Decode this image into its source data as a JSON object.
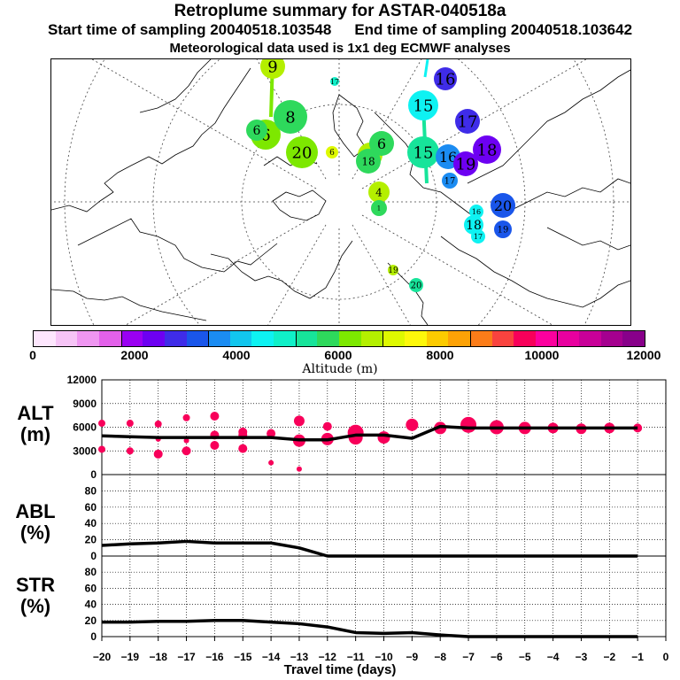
{
  "header": {
    "title": "Retroplume summary for ASTAR-040518a",
    "start": "Start time of sampling 20040518.103548",
    "end": "End time of sampling 20040518.103642",
    "met": "Meteorological data used is 1x1 deg ECMWF analyses"
  },
  "colorbar": {
    "title": "Altitude (m)",
    "ticks": [
      "0",
      "2000",
      "4000",
      "6000",
      "8000",
      "10000",
      "12000"
    ],
    "colors": [
      "#fde6fd",
      "#f6c4f6",
      "#ef96f1",
      "#e361ea",
      "#9a00f2",
      "#6d00f2",
      "#3f2ce8",
      "#1a56ea",
      "#1b8cf2",
      "#12c6ee",
      "#0ef2f2",
      "#10f0c8",
      "#17e49a",
      "#2ed95c",
      "#7de800",
      "#b4ef00",
      "#def900",
      "#fdf80a",
      "#fccb00",
      "#fda206",
      "#fb7c19",
      "#f9433f",
      "#f8005a",
      "#fc009e",
      "#e8009f",
      "#c80098",
      "#a5008f",
      "#88008a"
    ]
  },
  "map": {
    "plumes": [
      {
        "label": "9",
        "color": "#b4ef00"
      },
      {
        "label": "17",
        "color": "#10f0c8"
      },
      {
        "label": "6",
        "color": "#7de800"
      },
      {
        "label": "8",
        "color": "#2ed95c"
      },
      {
        "label": "6",
        "color": "#2ed95c"
      },
      {
        "label": "20",
        "color": "#7de800"
      },
      {
        "label": "6",
        "color": "#def900"
      },
      {
        "label": "4",
        "color": "#b4ef00"
      },
      {
        "label": "18",
        "color": "#2ed95c"
      },
      {
        "label": "6",
        "color": "#2ed95c"
      },
      {
        "label": "4",
        "color": "#b4ef00"
      },
      {
        "label": "1",
        "color": "#2ed95c"
      },
      {
        "label": "16",
        "color": "#3f2ce8"
      },
      {
        "label": "15",
        "color": "#0ef2f2"
      },
      {
        "label": "17",
        "color": "#3f2ce8"
      },
      {
        "label": "18",
        "color": "#6d00f2"
      },
      {
        "label": "15",
        "color": "#17e49a"
      },
      {
        "label": "16",
        "color": "#1b8cf2"
      },
      {
        "label": "19",
        "color": "#6d00f2"
      },
      {
        "label": "17",
        "color": "#1b8cf2"
      },
      {
        "label": "20",
        "color": "#1a56ea"
      },
      {
        "label": "16",
        "color": "#0ef2f2"
      },
      {
        "label": "18",
        "color": "#0ef2f2"
      },
      {
        "label": "19",
        "color": "#1a56ea"
      },
      {
        "label": "17",
        "color": "#0ef2f2"
      },
      {
        "label": "19",
        "color": "#b4ef00"
      },
      {
        "label": "20",
        "color": "#17e49a"
      }
    ]
  },
  "panels": {
    "alt": {
      "name": "ALT",
      "unit": "(m)"
    },
    "abl": {
      "name": "ABL",
      "unit": "(%)"
    },
    "str": {
      "name": "STR",
      "unit": "(%)"
    }
  },
  "xaxis": {
    "title": "Travel time (days)"
  },
  "chart_data": [
    {
      "type": "line",
      "title": "ALT",
      "ylabel": "ALT (m)",
      "xlabel": "Travel time (days)",
      "ylim": [
        0,
        12000
      ],
      "yticks": [
        "0",
        "3000",
        "6000",
        "9000",
        "12000"
      ],
      "x": [
        -20,
        -19,
        -18,
        -17,
        -16,
        -15,
        -14,
        -13,
        -12,
        -11,
        -10,
        -9,
        -8,
        -7,
        -6,
        -5,
        -4,
        -3,
        -2,
        -1
      ],
      "series": [
        {
          "name": "mean altitude",
          "values": [
            4900,
            4800,
            4700,
            4700,
            4700,
            4700,
            4700,
            4400,
            4400,
            5000,
            5000,
            4600,
            6100,
            5900,
            5900,
            5900,
            5900,
            5900,
            5900,
            5900
          ]
        }
      ],
      "clusters": {
        "x": [
          -20,
          -20,
          -19,
          -19,
          -18,
          -18,
          -18,
          -17,
          -17,
          -17,
          -16,
          -16,
          -16,
          -15,
          -15,
          -15,
          -14,
          -14,
          -13,
          -13,
          -13,
          -12,
          -12,
          -11,
          -11,
          -10,
          -10,
          -9,
          -8,
          -7,
          -6,
          -5,
          -4,
          -3,
          -2,
          -1
        ],
        "y": [
          6500,
          3200,
          6500,
          3000,
          6400,
          2600,
          4500,
          7200,
          3000,
          4300,
          7400,
          3700,
          5000,
          5400,
          3300,
          5000,
          5200,
          1500,
          6800,
          700,
          4300,
          6100,
          4500,
          5300,
          4700,
          4700,
          4500,
          6300,
          5900,
          6300,
          6000,
          5900,
          5900,
          5800,
          5900,
          5900
        ],
        "size": [
          4,
          4,
          4,
          4,
          4,
          5,
          3,
          4,
          5,
          3,
          5,
          5,
          5,
          5,
          5,
          5,
          5,
          3,
          6,
          3,
          7,
          5,
          7,
          9,
          8,
          7,
          3,
          7,
          7,
          9,
          8,
          7,
          6,
          6,
          6,
          5
        ]
      }
    },
    {
      "type": "area",
      "title": "ABL",
      "ylabel": "ABL (%)",
      "ylim": [
        0,
        100
      ],
      "yticks": [
        "0",
        "20",
        "40",
        "60",
        "80"
      ],
      "x": [
        -20,
        -19,
        -18,
        -17,
        -16,
        -15,
        -14,
        -13,
        -12,
        -11,
        -10,
        -9,
        -8,
        -7,
        -6,
        -5,
        -4,
        -3,
        -2,
        -1
      ],
      "values": [
        13,
        15,
        16,
        18,
        16,
        16,
        16,
        10,
        0,
        0,
        0,
        0,
        0,
        0,
        0,
        0,
        0,
        0,
        0,
        0
      ]
    },
    {
      "type": "area",
      "title": "STR",
      "ylabel": "STR (%)",
      "ylim": [
        0,
        100
      ],
      "yticks": [
        "0",
        "20",
        "40",
        "60",
        "80"
      ],
      "x": [
        -20,
        -19,
        -18,
        -17,
        -16,
        -15,
        -14,
        -13,
        -12,
        -11,
        -10,
        -9,
        -8,
        -7,
        -6,
        -5,
        -4,
        -3,
        -2,
        -1
      ],
      "values": [
        18,
        18,
        19,
        19,
        20,
        20,
        18,
        16,
        12,
        5,
        4,
        5,
        2,
        0,
        0,
        0,
        0,
        0,
        0,
        0
      ]
    }
  ]
}
